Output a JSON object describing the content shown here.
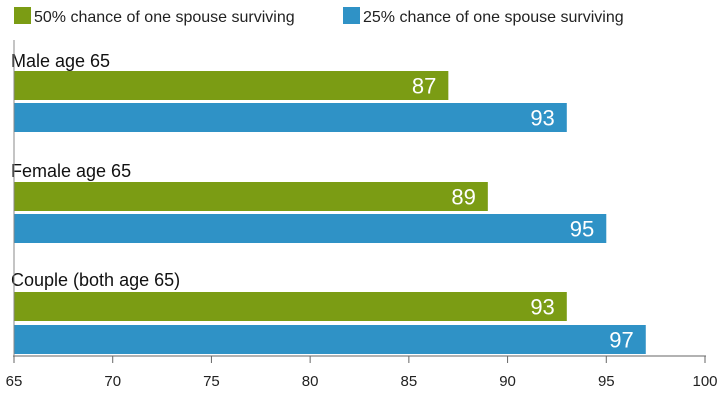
{
  "chart_data": {
    "type": "bar",
    "orientation": "horizontal",
    "categories": [
      "Male age 65",
      "Female age 65",
      "Couple (both age 65)"
    ],
    "series": [
      {
        "name": "50% chance of one spouse surviving",
        "color": "#7b9c14",
        "values": [
          87,
          89,
          93
        ]
      },
      {
        "name": "25% chance of one spouse surviving",
        "color": "#2f92c6",
        "values": [
          93,
          95,
          97
        ]
      }
    ],
    "xlim": [
      65,
      100
    ],
    "xticks": [
      65,
      70,
      75,
      80,
      85,
      90,
      95,
      100
    ],
    "legend_position": "top-left",
    "grid": false,
    "data_labels": true
  }
}
